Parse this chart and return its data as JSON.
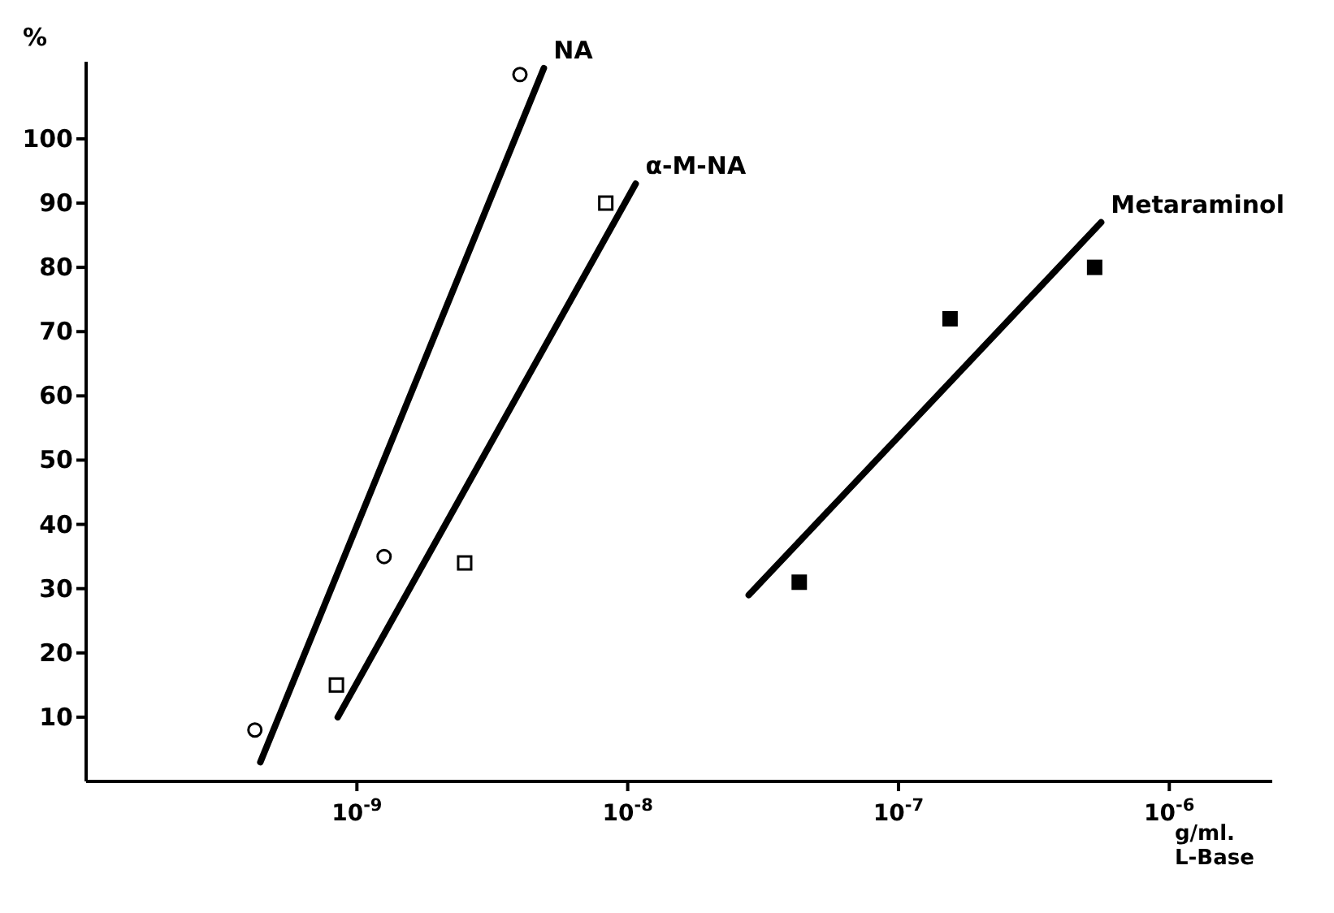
{
  "chart_data": {
    "type": "scatter",
    "ylabel": "%",
    "xlabel": "g/ml.\nL-Base",
    "log": "x",
    "xlim": [
      1e-10,
      2.4e-06
    ],
    "xticks": [
      {
        "value": 1e-09,
        "label": "10$^{-9}$"
      },
      {
        "value": 1e-08,
        "label": "10$^{-8}$"
      },
      {
        "value": 1e-07,
        "label": "10$^{-7}$"
      },
      {
        "value": 1e-06,
        "label": "10$^{-6}$"
      }
    ],
    "ylim": [
      0,
      112
    ],
    "yticks": [
      10,
      20,
      30,
      40,
      50,
      60,
      70,
      80,
      90,
      100
    ],
    "grid": false,
    "legend": false,
    "series": [
      {
        "color": "#ffffff",
        "marker": "circle",
        "x": [
          4.2e-10,
          1.26e-09,
          4e-09
        ],
        "values": [
          8,
          35,
          110
        ]
      },
      {
        "type": "line",
        "name": "NA",
        "color": "#000000",
        "x": [
          4.4e-10,
          4.9e-09
        ],
        "values": [
          3,
          111
        ]
      },
      {
        "color": "#ffffff",
        "marker": "square",
        "x": [
          8.4e-10,
          2.5e-09,
          8.3e-09
        ],
        "values": [
          15,
          34,
          90
        ]
      },
      {
        "type": "line",
        "name": "α-M-NA",
        "color": "#000000",
        "x": [
          8.5e-10,
          1.07e-08
        ],
        "values": [
          10,
          93
        ]
      },
      {
        "color": "#000000",
        "marker": "square",
        "x": [
          4.3e-08,
          1.55e-07,
          5.3e-07
        ],
        "values": [
          31,
          72,
          80
        ]
      },
      {
        "type": "line",
        "name": "Metaraminol",
        "color": "#000000",
        "x": [
          2.8e-08,
          5.6e-07
        ],
        "values": [
          29,
          87
        ]
      }
    ]
  }
}
